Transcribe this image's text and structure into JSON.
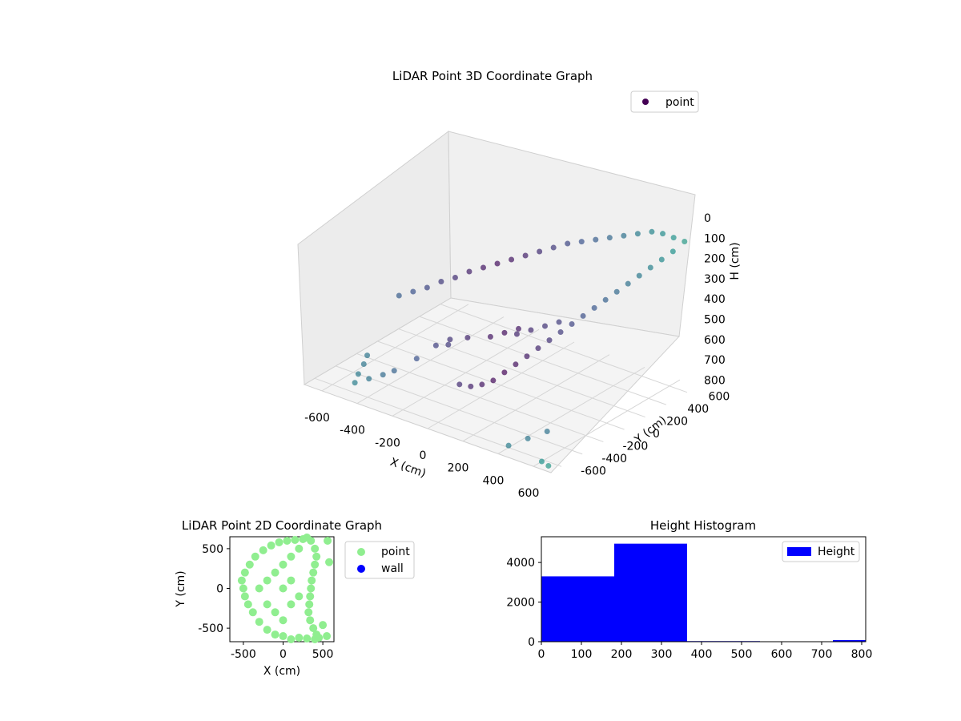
{
  "figure": {
    "background": "#ffffff"
  },
  "chart_data": [
    {
      "type": "scatter",
      "projection": "3d",
      "title": "LiDAR Point 3D Coordinate Graph",
      "xlabel": "X (cm)",
      "ylabel": "Y (cm)",
      "zlabel": "H (cm)",
      "xticks": [
        -600,
        -400,
        -200,
        0,
        200,
        400,
        600
      ],
      "yticks": [
        -600,
        -400,
        -200,
        0,
        200,
        400,
        600
      ],
      "zticks": [
        0,
        100,
        200,
        300,
        400,
        500,
        600,
        700,
        800
      ],
      "xlim": [
        -700,
        700
      ],
      "ylim": [
        -700,
        700
      ],
      "zlim": [
        830,
        0
      ],
      "grid": true,
      "legend": {
        "placement": "top-right",
        "entries": [
          {
            "name": "point",
            "color": "#440154"
          }
        ]
      },
      "colormap": "viridis",
      "series": [
        {
          "name": "point",
          "description_of_shape": "dense dark-purple point cloud forming a curved shell near H 100-300, with sparse lighter outliers",
          "points": [
            [
              -520,
              -520,
              820
            ],
            [
              -560,
              -420,
              820
            ],
            [
              -600,
              -300,
              820
            ],
            [
              -640,
              -200,
              820
            ],
            [
              -470,
              -470,
              800
            ],
            [
              -420,
              -420,
              780
            ],
            [
              -380,
              -380,
              760
            ],
            [
              -300,
              -300,
              700
            ],
            [
              -250,
              -200,
              650
            ],
            [
              -200,
              -150,
              620
            ],
            [
              -150,
              -250,
              600
            ],
            [
              -100,
              -150,
              580
            ],
            [
              0,
              -100,
              560
            ],
            [
              50,
              -50,
              540
            ],
            [
              100,
              0,
              520
            ],
            [
              150,
              -100,
              500
            ],
            [
              200,
              -50,
              480
            ],
            [
              250,
              0,
              460
            ],
            [
              300,
              50,
              440
            ],
            [
              -400,
              -300,
              420
            ],
            [
              -350,
              -250,
              400
            ],
            [
              -300,
              -200,
              380
            ],
            [
              -250,
              -150,
              350
            ],
            [
              -200,
              -100,
              330
            ],
            [
              -150,
              -50,
              300
            ],
            [
              -100,
              0,
              280
            ],
            [
              -50,
              50,
              260
            ],
            [
              0,
              100,
              240
            ],
            [
              50,
              150,
              220
            ],
            [
              100,
              200,
              200
            ],
            [
              150,
              250,
              180
            ],
            [
              200,
              300,
              160
            ],
            [
              250,
              350,
              150
            ],
            [
              300,
              400,
              140
            ],
            [
              350,
              450,
              130
            ],
            [
              400,
              500,
              120
            ],
            [
              450,
              550,
              110
            ],
            [
              500,
              600,
              100
            ],
            [
              550,
              620,
              100
            ],
            [
              600,
              640,
              110
            ],
            [
              650,
              660,
              120
            ],
            [
              620,
              600,
              160
            ],
            [
              580,
              560,
              200
            ],
            [
              540,
              520,
              240
            ],
            [
              500,
              480,
              280
            ],
            [
              460,
              440,
              320
            ],
            [
              420,
              400,
              360
            ],
            [
              380,
              360,
              400
            ],
            [
              340,
              320,
              440
            ],
            [
              300,
              280,
              480
            ],
            [
              260,
              240,
              520
            ],
            [
              220,
              200,
              560
            ],
            [
              180,
              160,
              600
            ],
            [
              140,
              120,
              640
            ],
            [
              100,
              80,
              680
            ],
            [
              60,
              40,
              720
            ],
            [
              20,
              0,
              760
            ],
            [
              -20,
              -40,
              800
            ],
            [
              -60,
              -80,
              820
            ],
            [
              -100,
              -120,
              830
            ],
            [
              -140,
              -160,
              820
            ],
            [
              400,
              -600,
              820
            ],
            [
              450,
              -500,
              800
            ],
            [
              500,
              -400,
              780
            ],
            [
              600,
              -620,
              830
            ],
            [
              650,
              -640,
              830
            ]
          ]
        }
      ]
    },
    {
      "type": "scatter",
      "title": "LiDAR Point 2D Coordinate Graph",
      "xlabel": "X (cm)",
      "ylabel": "Y (cm)",
      "xticks": [
        -500,
        0,
        500
      ],
      "yticks": [
        -500,
        0,
        500
      ],
      "xlim": [
        -670,
        640
      ],
      "ylim": [
        -670,
        650
      ],
      "legend": {
        "placement": "outside-right",
        "entries": [
          {
            "name": "point",
            "color": "#90ee90"
          },
          {
            "name": "wall",
            "color": "#0000ff"
          }
        ]
      },
      "series": [
        {
          "name": "point",
          "color": "#90ee90",
          "points": [
            [
              -500,
              0
            ],
            [
              -520,
              100
            ],
            [
              -480,
              200
            ],
            [
              -420,
              300
            ],
            [
              -350,
              400
            ],
            [
              -250,
              480
            ],
            [
              -150,
              540
            ],
            [
              -50,
              580
            ],
            [
              50,
              600
            ],
            [
              150,
              610
            ],
            [
              250,
              620
            ],
            [
              300,
              640
            ],
            [
              350,
              600
            ],
            [
              400,
              500
            ],
            [
              420,
              400
            ],
            [
              400,
              300
            ],
            [
              380,
              200
            ],
            [
              360,
              100
            ],
            [
              350,
              0
            ],
            [
              340,
              -100
            ],
            [
              330,
              -200
            ],
            [
              320,
              -300
            ],
            [
              340,
              -400
            ],
            [
              380,
              -500
            ],
            [
              420,
              -580
            ],
            [
              450,
              -620
            ],
            [
              400,
              -640
            ],
            [
              300,
              -630
            ],
            [
              200,
              -620
            ],
            [
              100,
              -640
            ],
            [
              0,
              -600
            ],
            [
              -100,
              -580
            ],
            [
              -200,
              -520
            ],
            [
              -300,
              -420
            ],
            [
              -380,
              -300
            ],
            [
              -440,
              -200
            ],
            [
              -480,
              -100
            ],
            [
              -300,
              0
            ],
            [
              -200,
              100
            ],
            [
              -100,
              200
            ],
            [
              0,
              300
            ],
            [
              100,
              400
            ],
            [
              200,
              500
            ],
            [
              -200,
              -200
            ],
            [
              -100,
              -300
            ],
            [
              0,
              -400
            ],
            [
              100,
              -200
            ],
            [
              200,
              -100
            ],
            [
              0,
              0
            ],
            [
              100,
              100
            ],
            [
              580,
              330
            ],
            [
              560,
              600
            ],
            [
              500,
              -460
            ],
            [
              550,
              -600
            ]
          ]
        },
        {
          "name": "wall",
          "color": "#0000ff",
          "points": []
        }
      ]
    },
    {
      "type": "bar",
      "title": "Height Histogram",
      "xticks": [
        0,
        100,
        200,
        300,
        400,
        500,
        600,
        700,
        800
      ],
      "yticks": [
        0,
        2000,
        4000
      ],
      "xlim": [
        0,
        810
      ],
      "ylim": [
        0,
        5300
      ],
      "legend": {
        "placement": "top-right",
        "entries": [
          {
            "name": "Height",
            "color": "#0000ff"
          }
        ]
      },
      "series": [
        {
          "name": "Height",
          "color": "#0000ff",
          "bins": [
            {
              "x0": 0,
              "x1": 182,
              "value": 3300
            },
            {
              "x0": 182,
              "x1": 364,
              "value": 4950
            },
            {
              "x0": 364,
              "x1": 546,
              "value": 30
            },
            {
              "x0": 546,
              "x1": 728,
              "value": 20
            },
            {
              "x0": 728,
              "x1": 810,
              "value": 80
            }
          ]
        }
      ]
    }
  ]
}
